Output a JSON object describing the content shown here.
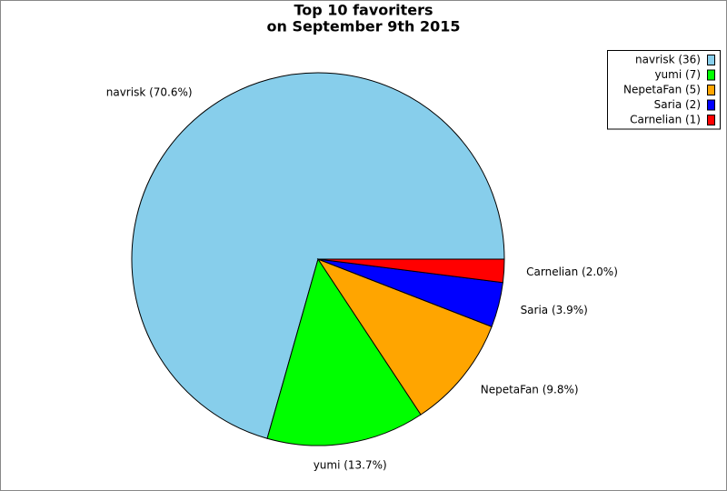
{
  "chart_data": {
    "type": "pie",
    "title": "Top 10 favoriters",
    "subtitle": "on September 9th 2015",
    "categories": [
      "navrisk (36)",
      "yumi (7)",
      "NepetaFan (5)",
      "Saria (2)",
      "Carnelian (1)"
    ],
    "values": [
      70.6,
      13.7,
      9.8,
      3.9,
      2.0
    ],
    "value_labels": [
      "navrisk (70.6%)",
      "yumi (13.7%)",
      "NepetaFan (9.8%)",
      "Saria (3.9%)",
      "Carnelian (2.0%)"
    ],
    "colors": [
      "#87ceeb",
      "#00ff00",
      "#ffa500",
      "#0000ff",
      "#ff0000"
    ],
    "legend": "top-right"
  }
}
